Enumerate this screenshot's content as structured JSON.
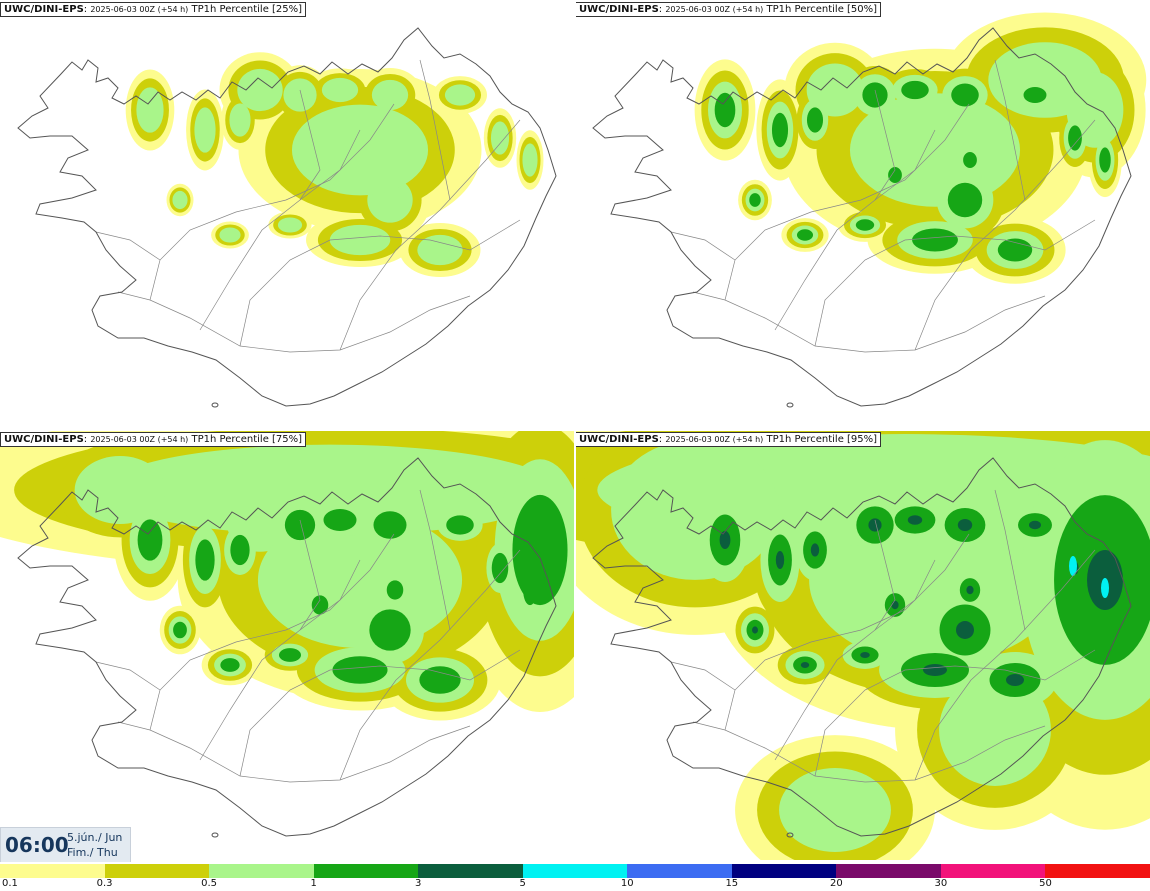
{
  "panels": [
    {
      "source": "UWC/DINI-EPS",
      "run": "2025-06-03 00Z (+54 h)",
      "field": "TP1h Percentile [25%]"
    },
    {
      "source": "UWC/DINI-EPS",
      "run": "2025-06-03 00Z (+54 h)",
      "field": "TP1h Percentile [50%]"
    },
    {
      "source": "UWC/DINI-EPS",
      "run": "2025-06-03 00Z (+54 h)",
      "field": "TP1h Percentile [75%]"
    },
    {
      "source": "UWC/DINI-EPS",
      "run": "2025-06-03 00Z (+54 h)",
      "field": "TP1h Percentile [95%]"
    }
  ],
  "time": {
    "hour": "06:00",
    "date_line1": "5.jún./ Jun",
    "date_line2": "Fim./ Thu"
  },
  "legend": {
    "labels": [
      "0.1",
      "0.3",
      "0.5",
      "1",
      "3",
      "5",
      "10",
      "15",
      "20",
      "30",
      "50"
    ],
    "colors": [
      "#fdfc8e",
      "#cdd00a",
      "#a9f58a",
      "#16a616",
      "#0b5e3d",
      "#00f2f2",
      "#3c6cf2",
      "#000080",
      "#7a0a6a",
      "#f2127a",
      "#f21212"
    ]
  },
  "colors": {
    "land_outline": "#555555",
    "roads": "#888888"
  }
}
